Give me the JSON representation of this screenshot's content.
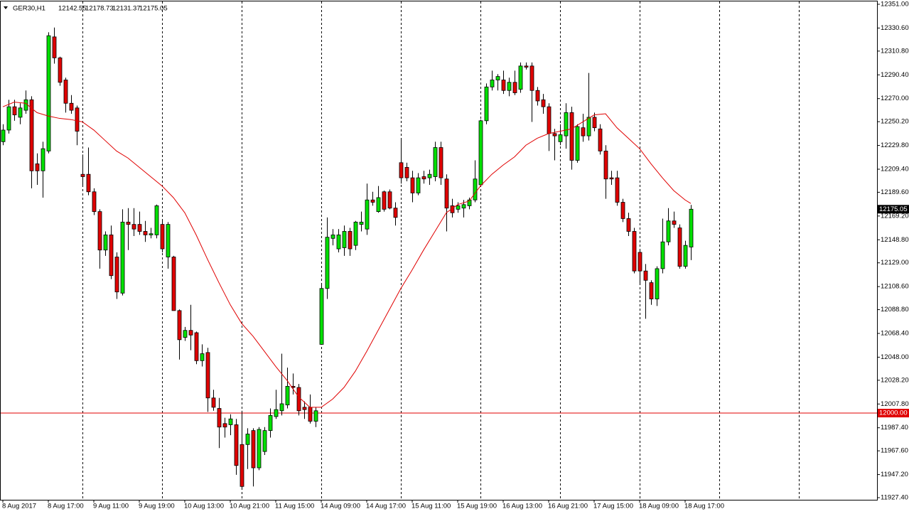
{
  "chart_data": {
    "type": "candlestick",
    "title": "GER30,H1",
    "categories": [
      "8 Aug 2017",
      null,
      null,
      null,
      null,
      null,
      null,
      null,
      "8 Aug 17:00",
      null,
      null,
      null,
      null,
      null,
      null,
      null,
      "9 Aug 11:00",
      null,
      null,
      null,
      null,
      null,
      null,
      null,
      "9 Aug 19:00",
      null,
      null,
      null,
      null,
      null,
      null,
      null,
      "10 Aug 13:00",
      null,
      null,
      null,
      null,
      null,
      null,
      null,
      "10 Aug 21:00",
      null,
      null,
      null,
      null,
      null,
      null,
      null,
      "11 Aug 15:00",
      null,
      null,
      null,
      null,
      null,
      null,
      null,
      "14 Aug 09:00",
      null,
      null,
      null,
      null,
      null,
      null,
      null,
      "14 Aug 17:00",
      null,
      null,
      null,
      null,
      null,
      null,
      null,
      "15 Aug 11:00",
      null,
      null,
      null,
      null,
      null,
      null,
      null,
      "15 Aug 19:00",
      null,
      null,
      null,
      null,
      null,
      null,
      null,
      "16 Aug 13:00",
      null,
      null,
      null,
      null,
      null,
      null,
      null,
      "16 Aug 21:00",
      null,
      null,
      null,
      null,
      null,
      null,
      null,
      "17 Aug 15:00",
      null,
      null,
      null,
      null,
      null,
      null,
      null,
      "18 Aug 09:00",
      null,
      null,
      null,
      null,
      null,
      null,
      null,
      "18 Aug 17:00",
      null
    ],
    "open": [
      12233,
      12243,
      12263,
      12254,
      12260,
      12269,
      12214,
      12208,
      12225,
      12323,
      12305,
      12286,
      12266,
      12262,
      12205,
      12205,
      12190,
      12173,
      12140,
      12153,
      12134,
      12103,
      12164,
      12162,
      12162,
      12156,
      12153,
      12153,
      12162,
      12134,
      12134,
      12088,
      12065,
      12071,
      12069,
      12045,
      12052,
      12013,
      12004,
      11991,
      11990,
      11990,
      11973,
      11973,
      11985,
      11953,
      11967,
      11985,
      11997,
      12002,
      12007,
      12023,
      12022,
      12005,
      12005,
      11993,
      12059,
      12107,
      12150,
      12141,
      12142,
      12156,
      12144,
      12162,
      12158,
      12183,
      12173,
      12190,
      12190,
      12176,
      12215,
      12211,
      12202,
      12189,
      12203,
      12202,
      12203,
      12228,
      12201,
      12178,
      12175,
      12176,
      12178,
      12183,
      12196,
      12251,
      12280,
      12286,
      12286,
      12277,
      12284,
      12278,
      12298,
      12298,
      12277,
      12269,
      12263,
      12240,
      12233,
      12238,
      12258,
      12217,
      12245,
      12238,
      12254,
      12244,
      12225,
      12202,
      12202,
      12181,
      12167,
      12156,
      12138,
      12122,
      12112,
      12098,
      12124,
      12147,
      12165,
      12159,
      12126,
      12142.55
    ],
    "high": [
      12248,
      12269,
      12269,
      12266,
      12277,
      12272,
      12223,
      12233,
      12327,
      12331,
      12306,
      12288,
      12273,
      12264,
      12222,
      12228,
      12193,
      12175,
      12156,
      12161,
      12138,
      12175,
      12176,
      12176,
      12173,
      12165,
      12159,
      12179,
      12165,
      12164,
      12135,
      12089,
      12074,
      12093,
      12070,
      12059,
      12056,
      12020,
      12013,
      11996,
      11999,
      11995,
      12002,
      11987,
      11987,
      11988,
      11988,
      12004,
      12020,
      12051,
      12039,
      12034,
      12025,
      12010,
      12016,
      12005,
      12111,
      12168,
      12158,
      12158,
      12161,
      12159,
      12165,
      12173,
      12197,
      12190,
      12195,
      12191,
      12192,
      12181,
      12236,
      12215,
      12208,
      12206,
      12208,
      12209,
      12233,
      12233,
      12205,
      12184,
      12181,
      12183,
      12185,
      12217,
      12252,
      12283,
      12294,
      12291,
      12294,
      12288,
      12294,
      12301,
      12301,
      12301,
      12280,
      12274,
      12266,
      12244,
      12248,
      12266,
      12263,
      12248,
      12257,
      12292,
      12258,
      12248,
      12230,
      12208,
      12208,
      12184,
      12172,
      12159,
      12141,
      12128,
      12114,
      12126,
      12167,
      12176,
      12173,
      12162,
      12148,
      12178.73
    ],
    "low": [
      12230,
      12240,
      12251,
      12248,
      12257,
      12193,
      12196,
      12185,
      12223,
      12300,
      12281,
      12258,
      12257,
      12230,
      12196,
      12187,
      12170,
      12124,
      12135,
      12115,
      12098,
      12101,
      12140,
      12152,
      12153,
      12147,
      12150,
      12150,
      12138,
      12124,
      12088,
      12046,
      12062,
      12054,
      12042,
      12040,
      12001,
      12002,
      11970,
      11979,
      11981,
      11947,
      11935,
      11952,
      11937,
      11951,
      11964,
      11979,
      11995,
      11998,
      12004,
      12016,
      11998,
      11995,
      11991,
      11988,
      12059,
      12098,
      12144,
      12138,
      12135,
      12135,
      12140,
      12156,
      12153,
      12178,
      12172,
      12173,
      12175,
      12161,
      12197,
      12199,
      12181,
      12187,
      12197,
      12196,
      12199,
      12196,
      12156,
      12168,
      12172,
      12168,
      12175,
      12181,
      12195,
      12248,
      12277,
      12277,
      12274,
      12272,
      12273,
      12275,
      12295,
      12250,
      12264,
      12257,
      12225,
      12217,
      12230,
      12227,
      12209,
      12215,
      12233,
      12234,
      12242,
      12222,
      12184,
      12196,
      12178,
      12164,
      12152,
      12120,
      12111,
      12081,
      12093,
      12092,
      12120,
      12144,
      12159,
      12124,
      12124,
      12131.37
    ],
    "close": [
      12243,
      12263,
      12256,
      12262,
      12269,
      12208,
      12208,
      12227,
      12324,
      12305,
      12284,
      12266,
      12260,
      12242,
      12203,
      12190,
      12173,
      12140,
      12153,
      12118,
      12104,
      12164,
      12162,
      12158,
      12156,
      12153,
      12154,
      12178,
      12141,
      12162,
      12088,
      12063,
      12071,
      12067,
      12045,
      12051,
      12013,
      12005,
      11988,
      11988,
      11995,
      11955,
      11937,
      11982,
      11953,
      11986,
      11985,
      11998,
      12003,
      12008,
      12023,
      12022,
      12002,
      12003,
      11993,
      12002,
      12107,
      12151,
      12153,
      12153,
      12156,
      12141,
      12164,
      12164,
      12183,
      12181,
      12185,
      12175,
      12176,
      12168,
      12202,
      12202,
      12189,
      12202,
      12201,
      12205,
      12228,
      12202,
      12176,
      12172,
      12178,
      12179,
      12183,
      12201,
      12251,
      12280,
      12286,
      12289,
      12277,
      12284,
      12275,
      12298,
      12297,
      12277,
      12268,
      12263,
      12240,
      12238,
      12239,
      12258,
      12217,
      12246,
      12238,
      12254,
      12245,
      12225,
      12201,
      12201,
      12181,
      12167,
      12156,
      12122,
      12122,
      12114,
      12098,
      12124,
      12147,
      12165,
      12162,
      12126,
      12144,
      12175.05
    ],
    "up_color": "#00e000",
    "down_color": "#e00000",
    "moving_average": {
      "color": "#e00000",
      "x": [
        0,
        2,
        4,
        6,
        8,
        10,
        12,
        14,
        16,
        18,
        20,
        22,
        24,
        26,
        28,
        30,
        32,
        34,
        36,
        38,
        40,
        42,
        44,
        46,
        48,
        50,
        52,
        54,
        56,
        58,
        60,
        62,
        64,
        66,
        68,
        70,
        72,
        74,
        76,
        78,
        80,
        82,
        84,
        86,
        88,
        90,
        92,
        94,
        96,
        98,
        100,
        102,
        104,
        106,
        108,
        110,
        112,
        114,
        116,
        118,
        120,
        121
      ],
      "values": [
        12263,
        12267,
        12266,
        12258,
        12255,
        12253,
        12252,
        12250,
        12243,
        12234,
        12225,
        12219,
        12211,
        12203,
        12195,
        12185,
        12172,
        12153,
        12132,
        12112,
        12093,
        12077,
        12066,
        12053,
        12040,
        12028,
        12014,
        12005,
        12005,
        12012,
        12022,
        12036,
        12053,
        12071,
        12089,
        12107,
        12123,
        12140,
        12156,
        12172,
        12179,
        12182,
        12195,
        12205,
        12213,
        12220,
        12230,
        12236,
        12240,
        12242,
        12244,
        12250,
        12256,
        12257,
        12245,
        12236,
        12227,
        12214,
        12202,
        12191,
        12183,
        12180
      ]
    },
    "hline": {
      "value": 12000,
      "label": "12000.00",
      "color": "#e00000"
    },
    "last_price": {
      "value": 12175.05,
      "label": "12175.05"
    },
    "ylim": [
      11927.4,
      12351
    ],
    "yticks": [
      {
        "value": 12351,
        "label": "12351.00"
      },
      {
        "value": 12330.6,
        "label": "12330.60"
      },
      {
        "value": 12310.8,
        "label": "12310.80"
      },
      {
        "value": 12290.4,
        "label": "12290.40"
      },
      {
        "value": 12270,
        "label": "12270.00"
      },
      {
        "value": 12250.2,
        "label": "12250.20"
      },
      {
        "value": 12229.8,
        "label": "12229.80"
      },
      {
        "value": 12209.4,
        "label": "12209.40"
      },
      {
        "value": 12189.6,
        "label": "12189.60"
      },
      {
        "value": 12169.2,
        "label": "12169.20"
      },
      {
        "value": 12148.8,
        "label": "12148.80"
      },
      {
        "value": 12129,
        "label": "12129.00"
      },
      {
        "value": 12108.6,
        "label": "12108.60"
      },
      {
        "value": 12088.8,
        "label": "12088.80"
      },
      {
        "value": 12068.4,
        "label": "12068.40"
      },
      {
        "value": 12048,
        "label": "12048.00"
      },
      {
        "value": 12028.2,
        "label": "12028.20"
      },
      {
        "value": 12007.8,
        "label": "12007.80"
      },
      {
        "value": 11987.4,
        "label": "11987.40"
      },
      {
        "value": 11967.6,
        "label": "11967.60"
      },
      {
        "value": 11947.2,
        "label": "11947.20"
      },
      {
        "value": 11927.4,
        "label": "11927.40"
      }
    ]
  }
}
